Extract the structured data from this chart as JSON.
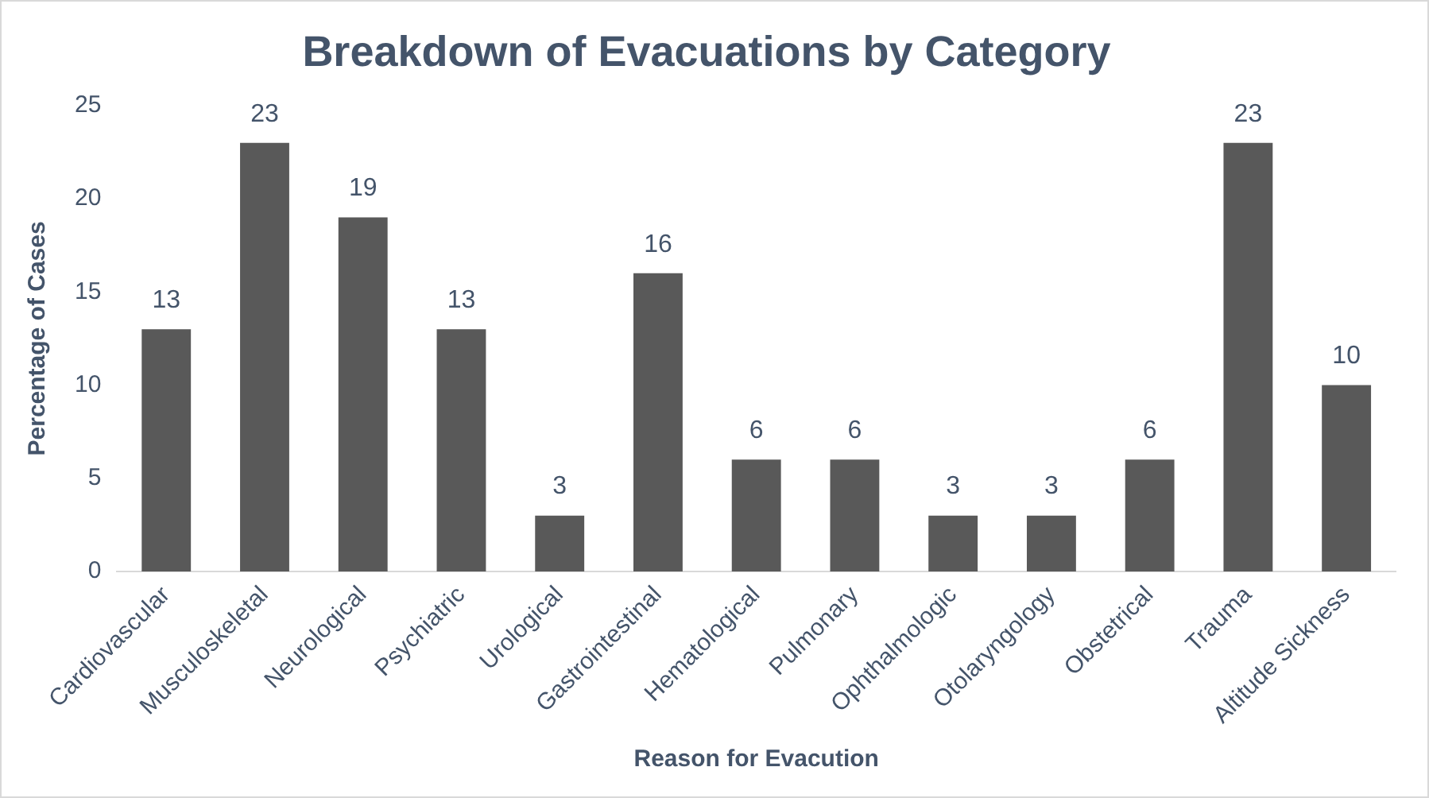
{
  "chart_data": {
    "type": "bar",
    "title": "Breakdown of Evacuations by Category",
    "xlabel": "Reason for Evacution",
    "ylabel": "Percentage of Cases",
    "categories": [
      "Cardiovascular",
      "Musculoskeletal",
      "Neurological",
      "Psychiatric",
      "Urological",
      "Gastrointestinal",
      "Hematological",
      "Pulmonary",
      "Ophthalmologic",
      "Otolaryngology",
      "Obstetrical",
      "Trauma",
      "Altitude Sickness"
    ],
    "values": [
      13,
      23,
      19,
      13,
      3,
      16,
      6,
      6,
      3,
      3,
      6,
      23,
      10
    ],
    "color": "#595959",
    "ylim": [
      0,
      25
    ],
    "yticks": [
      0,
      5,
      10,
      15,
      20,
      25
    ],
    "grid": false,
    "legend": false,
    "data_labels": true
  }
}
